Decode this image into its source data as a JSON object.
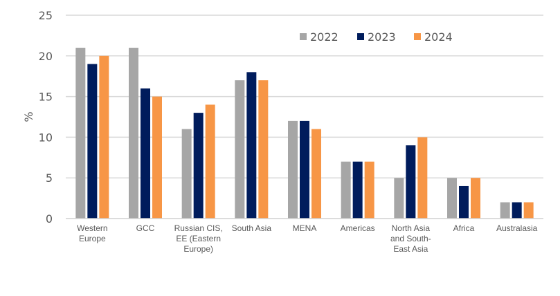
{
  "chart_data": {
    "type": "bar",
    "title": "",
    "xlabel": "",
    "ylabel": "%",
    "ylim": [
      0,
      25
    ],
    "yticks": [
      0,
      5,
      10,
      15,
      20,
      25
    ],
    "grid": true,
    "legend_position": "top-right",
    "categories": [
      [
        "Western",
        "Europe"
      ],
      [
        "GCC"
      ],
      [
        "Russian CIS,",
        "EE (Eastern",
        "Europe)"
      ],
      [
        "South Asia"
      ],
      [
        "MENA"
      ],
      [
        "Americas"
      ],
      [
        "North Asia",
        "and South-",
        "East Asia"
      ],
      [
        "Africa"
      ],
      [
        "Australasia"
      ]
    ],
    "series": [
      {
        "name": "2022",
        "color": "#a6a6a6",
        "values": [
          21,
          21,
          11,
          17,
          12,
          7,
          5,
          5,
          2
        ]
      },
      {
        "name": "2023",
        "color": "#001c5c",
        "values": [
          19,
          16,
          13,
          18,
          12,
          7,
          9,
          4,
          2
        ]
      },
      {
        "name": "2024",
        "color": "#f79646",
        "values": [
          20,
          15,
          14,
          17,
          11,
          7,
          10,
          5,
          2
        ]
      }
    ]
  }
}
